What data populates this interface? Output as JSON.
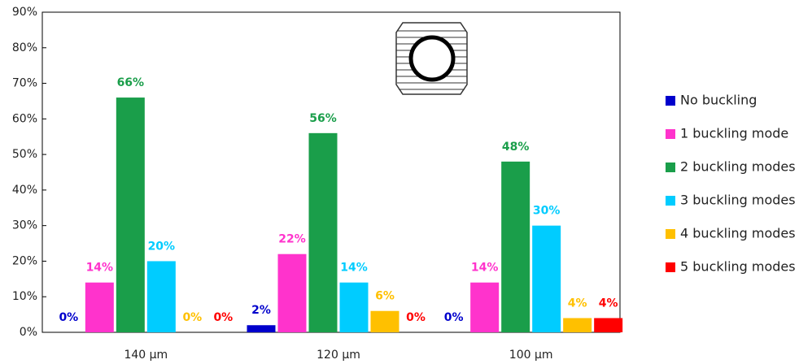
{
  "chart_data": {
    "type": "bar",
    "categories": [
      "140 µm",
      "120 µm",
      "100 µm"
    ],
    "series": [
      {
        "name": "No buckling",
        "color": "#0000cc",
        "values": [
          0,
          2,
          0
        ],
        "value_labels": [
          "0%",
          "2%",
          "0%"
        ]
      },
      {
        "name": "1 buckling mode",
        "color": "#ff33cc",
        "values": [
          14,
          22,
          14
        ],
        "value_labels": [
          "14%",
          "22%",
          "14%"
        ]
      },
      {
        "name": "2 buckling modes",
        "color": "#1a9e4a",
        "values": [
          66,
          56,
          48
        ],
        "value_labels": [
          "66%",
          "56%",
          "48%"
        ]
      },
      {
        "name": "3 buckling modes",
        "color": "#00ccff",
        "values": [
          20,
          14,
          30
        ],
        "value_labels": [
          "20%",
          "14%",
          "30%"
        ]
      },
      {
        "name": "4 buckling modes",
        "color": "#ffc000",
        "values": [
          0,
          6,
          4
        ],
        "value_labels": [
          "0%",
          "6%",
          "4%"
        ]
      },
      {
        "name": "5 buckling modes",
        "color": "#ff0000",
        "values": [
          0,
          0,
          4
        ],
        "value_labels": [
          "0%",
          "0%",
          "4%"
        ]
      }
    ],
    "ylim": [
      0,
      90
    ],
    "yticks": [
      {
        "value": 0,
        "label": "0%"
      },
      {
        "value": 10,
        "label": "10%"
      },
      {
        "value": 20,
        "label": "20%"
      },
      {
        "value": 30,
        "label": "30%"
      },
      {
        "value": 40,
        "label": "40%"
      },
      {
        "value": 50,
        "label": "50%"
      },
      {
        "value": 60,
        "label": "60%"
      },
      {
        "value": 70,
        "label": "70%"
      },
      {
        "value": 80,
        "label": "80%"
      },
      {
        "value": 90,
        "label": "90%"
      }
    ],
    "legend": "right"
  }
}
